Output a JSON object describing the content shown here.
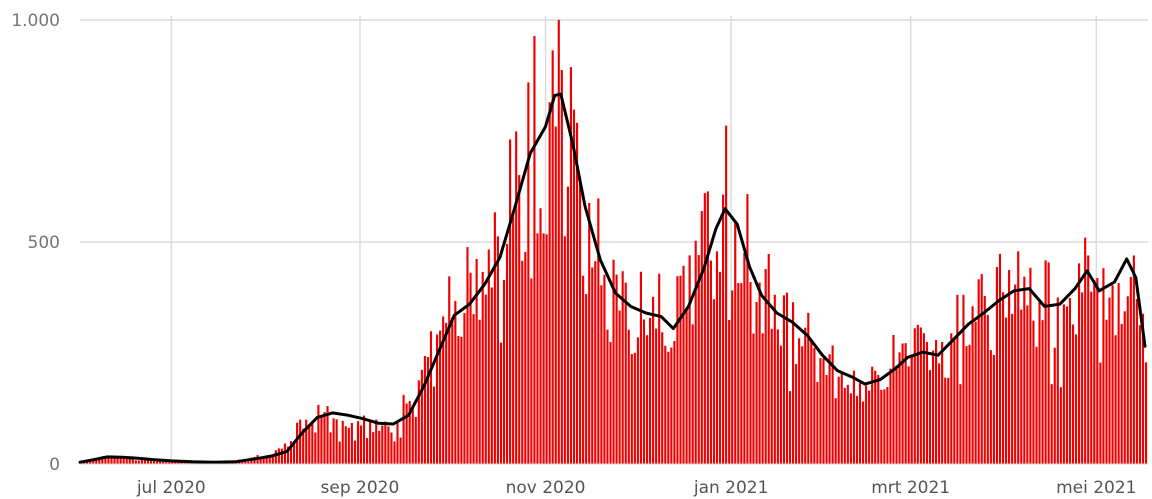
{
  "chart_data": {
    "type": "bar",
    "subtype": "daily bars with 7-day moving average line",
    "x_start": "2020-06-01",
    "x_end": "2021-05-17",
    "ylim": [
      0,
      1000
    ],
    "y_ticks": [
      {
        "value": 0,
        "label": "0"
      },
      {
        "value": 500,
        "label": "500"
      },
      {
        "value": 1000,
        "label": "1.000"
      }
    ],
    "x_ticks": [
      {
        "date": "2020-07-01",
        "label": "jul 2020"
      },
      {
        "date": "2020-09-01",
        "label": "sep 2020"
      },
      {
        "date": "2020-11-01",
        "label": "nov 2020"
      },
      {
        "date": "2021-01-01",
        "label": "jan 2021"
      },
      {
        "date": "2021-03-01",
        "label": "mrt 2021"
      },
      {
        "date": "2021-05-01",
        "label": "mei 2021"
      }
    ],
    "grid": {
      "horizontal": true,
      "vertical": true
    },
    "colors": {
      "bars": "#ee0000",
      "average_line": "#000000",
      "grid": "#dcdcdc"
    },
    "series": [
      {
        "kind": "bars",
        "points": [
          [
            "2020-06-01",
            6
          ],
          [
            "2020-06-05",
            12
          ],
          [
            "2020-06-10",
            18
          ],
          [
            "2020-06-15",
            14
          ],
          [
            "2020-06-20",
            12
          ],
          [
            "2020-06-25",
            9
          ],
          [
            "2020-07-01",
            6
          ],
          [
            "2020-07-08",
            5
          ],
          [
            "2020-07-15",
            4
          ],
          [
            "2020-07-22",
            7
          ],
          [
            "2020-07-29",
            15
          ],
          [
            "2020-08-03",
            20
          ],
          [
            "2020-08-08",
            45
          ],
          [
            "2020-08-13",
            95
          ],
          [
            "2020-08-18",
            112
          ],
          [
            "2020-08-23",
            108
          ],
          [
            "2020-08-28",
            100
          ],
          [
            "2020-09-02",
            95
          ],
          [
            "2020-09-07",
            88
          ],
          [
            "2020-09-12",
            95
          ],
          [
            "2020-09-17",
            135
          ],
          [
            "2020-09-22",
            200
          ],
          [
            "2020-09-27",
            275
          ],
          [
            "2020-10-02",
            340
          ],
          [
            "2020-10-07",
            380
          ],
          [
            "2020-10-12",
            420
          ],
          [
            "2020-10-17",
            510
          ],
          [
            "2020-10-22",
            620
          ],
          [
            "2020-10-27",
            740
          ],
          [
            "2020-11-01",
            800
          ],
          [
            "2020-11-04",
            830
          ],
          [
            "2020-11-08",
            760
          ],
          [
            "2020-11-12",
            600
          ],
          [
            "2020-11-16",
            480
          ],
          [
            "2020-11-21",
            390
          ],
          [
            "2020-11-26",
            350
          ],
          [
            "2020-12-01",
            320
          ],
          [
            "2020-12-06",
            340
          ],
          [
            "2020-12-11",
            310
          ],
          [
            "2020-12-16",
            370
          ],
          [
            "2020-12-21",
            460
          ],
          [
            "2020-12-26",
            540
          ],
          [
            "2020-12-30",
            570
          ],
          [
            "2021-01-04",
            500
          ],
          [
            "2021-01-09",
            400
          ],
          [
            "2021-01-14",
            340
          ],
          [
            "2021-01-19",
            320
          ],
          [
            "2021-01-24",
            280
          ],
          [
            "2021-01-29",
            235
          ],
          [
            "2021-02-03",
            205
          ],
          [
            "2021-02-08",
            190
          ],
          [
            "2021-02-13",
            178
          ],
          [
            "2021-02-18",
            200
          ],
          [
            "2021-02-23",
            225
          ],
          [
            "2021-02-28",
            248
          ],
          [
            "2021-03-05",
            255
          ],
          [
            "2021-03-10",
            250
          ],
          [
            "2021-03-15",
            280
          ],
          [
            "2021-03-20",
            310
          ],
          [
            "2021-03-25",
            340
          ],
          [
            "2021-03-30",
            375
          ],
          [
            "2021-04-04",
            395
          ],
          [
            "2021-04-09",
            390
          ],
          [
            "2021-04-14",
            350
          ],
          [
            "2021-04-19",
            360
          ],
          [
            "2021-04-24",
            400
          ],
          [
            "2021-04-29",
            430
          ],
          [
            "2021-05-04",
            380
          ],
          [
            "2021-05-09",
            415
          ],
          [
            "2021-05-13",
            460
          ],
          [
            "2021-05-17",
            320
          ]
        ]
      },
      {
        "kind": "line",
        "points": [
          [
            "2020-06-01",
            4
          ],
          [
            "2020-06-05",
            9
          ],
          [
            "2020-06-10",
            16
          ],
          [
            "2020-06-15",
            15
          ],
          [
            "2020-06-20",
            13
          ],
          [
            "2020-06-25",
            10
          ],
          [
            "2020-07-01",
            7
          ],
          [
            "2020-07-08",
            5
          ],
          [
            "2020-07-15",
            4
          ],
          [
            "2020-07-22",
            5
          ],
          [
            "2020-07-29",
            12
          ],
          [
            "2020-08-03",
            18
          ],
          [
            "2020-08-08",
            28
          ],
          [
            "2020-08-13",
            70
          ],
          [
            "2020-08-18",
            105
          ],
          [
            "2020-08-23",
            115
          ],
          [
            "2020-08-28",
            110
          ],
          [
            "2020-09-02",
            102
          ],
          [
            "2020-09-07",
            92
          ],
          [
            "2020-09-12",
            90
          ],
          [
            "2020-09-17",
            110
          ],
          [
            "2020-09-22",
            175
          ],
          [
            "2020-09-27",
            255
          ],
          [
            "2020-10-02",
            335
          ],
          [
            "2020-10-07",
            360
          ],
          [
            "2020-10-12",
            405
          ],
          [
            "2020-10-17",
            465
          ],
          [
            "2020-10-22",
            580
          ],
          [
            "2020-10-27",
            700
          ],
          [
            "2020-11-01",
            760
          ],
          [
            "2020-11-04",
            830
          ],
          [
            "2020-11-06",
            833
          ],
          [
            "2020-11-10",
            720
          ],
          [
            "2020-11-14",
            580
          ],
          [
            "2020-11-19",
            460
          ],
          [
            "2020-11-24",
            385
          ],
          [
            "2020-11-29",
            355
          ],
          [
            "2020-12-04",
            340
          ],
          [
            "2020-12-09",
            332
          ],
          [
            "2020-12-13",
            305
          ],
          [
            "2020-12-18",
            355
          ],
          [
            "2020-12-23",
            440
          ],
          [
            "2020-12-27",
            530
          ],
          [
            "2020-12-30",
            575
          ],
          [
            "2021-01-03",
            540
          ],
          [
            "2021-01-07",
            445
          ],
          [
            "2021-01-11",
            380
          ],
          [
            "2021-01-16",
            340
          ],
          [
            "2021-01-21",
            320
          ],
          [
            "2021-01-26",
            290
          ],
          [
            "2021-01-31",
            245
          ],
          [
            "2021-02-05",
            210
          ],
          [
            "2021-02-10",
            195
          ],
          [
            "2021-02-14",
            180
          ],
          [
            "2021-02-19",
            190
          ],
          [
            "2021-02-24",
            215
          ],
          [
            "2021-02-28",
            240
          ],
          [
            "2021-03-05",
            252
          ],
          [
            "2021-03-10",
            245
          ],
          [
            "2021-03-15",
            280
          ],
          [
            "2021-03-20",
            315
          ],
          [
            "2021-03-25",
            340
          ],
          [
            "2021-03-30",
            368
          ],
          [
            "2021-04-04",
            390
          ],
          [
            "2021-04-09",
            395
          ],
          [
            "2021-04-14",
            355
          ],
          [
            "2021-04-19",
            360
          ],
          [
            "2021-04-24",
            395
          ],
          [
            "2021-04-28",
            435
          ],
          [
            "2021-05-02",
            390
          ],
          [
            "2021-05-07",
            410
          ],
          [
            "2021-05-11",
            462
          ],
          [
            "2021-05-14",
            420
          ],
          [
            "2021-05-17",
            265
          ]
        ]
      }
    ]
  }
}
